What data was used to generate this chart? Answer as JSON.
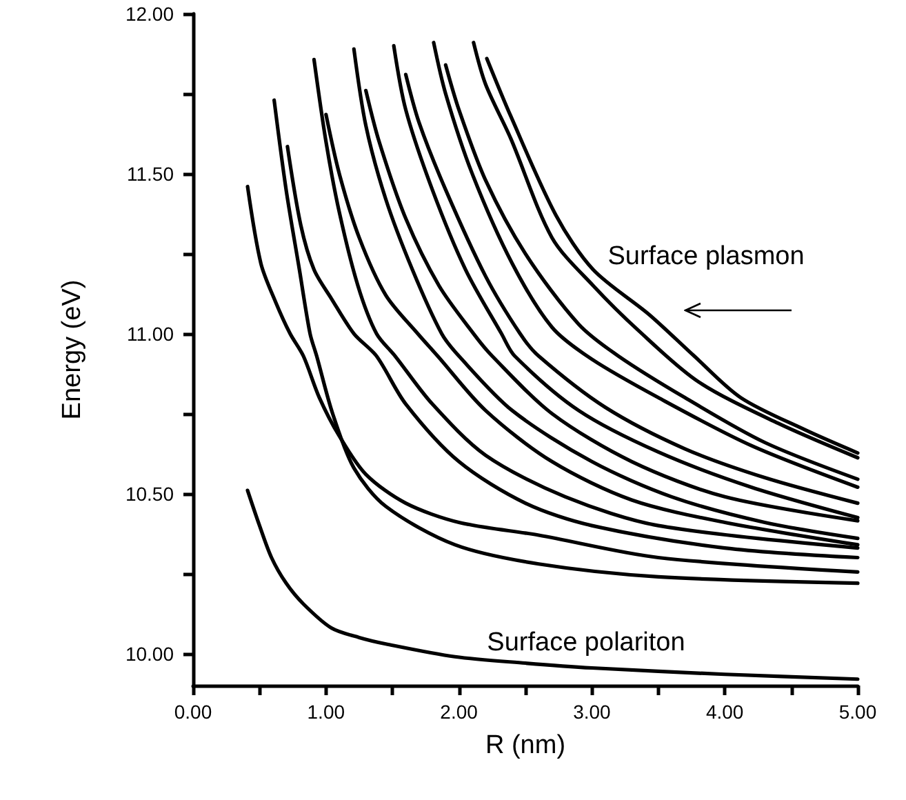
{
  "chart_data": {
    "type": "line",
    "xlabel": "R (nm)",
    "ylabel": "Energy (eV)",
    "xlim": [
      0,
      5
    ],
    "ylim": [
      9.9,
      12
    ],
    "xticks": [
      {
        "value": 0,
        "label": "0.00"
      },
      {
        "value": 0.5,
        "label": null
      },
      {
        "value": 1,
        "label": "1.00"
      },
      {
        "value": 1.5,
        "label": null
      },
      {
        "value": 2,
        "label": "2.00"
      },
      {
        "value": 2.5,
        "label": null
      },
      {
        "value": 3,
        "label": "3.00"
      },
      {
        "value": 3.5,
        "label": null
      },
      {
        "value": 4,
        "label": "4.00"
      },
      {
        "value": 4.5,
        "label": null
      },
      {
        "value": 5,
        "label": "5.00"
      }
    ],
    "yticks": [
      {
        "value": 10,
        "label": "10.00"
      },
      {
        "value": 10.25,
        "label": null
      },
      {
        "value": 10.5,
        "label": "10.50"
      },
      {
        "value": 10.75,
        "label": null
      },
      {
        "value": 11,
        "label": "11.00"
      },
      {
        "value": 11.25,
        "label": null
      },
      {
        "value": 11.5,
        "label": "11.50"
      },
      {
        "value": 11.75,
        "label": null
      },
      {
        "value": 12,
        "label": "12.00"
      }
    ],
    "series": [
      {
        "color": "#000000",
        "x": [
          0.41,
          0.5,
          0.59,
          0.7,
          0.83,
          1.04,
          1.25,
          1.45,
          1.97,
          2.5,
          3,
          4,
          5
        ],
        "values": [
          10.51,
          10.4,
          10.3,
          10.22,
          10.155,
          10.08,
          10.05,
          10.03,
          9.99,
          9.97,
          9.955,
          9.935,
          9.92
        ]
      },
      {
        "color": "#000000",
        "x": [
          0.41,
          0.51,
          0.62,
          0.73,
          0.83,
          0.95,
          1.1,
          1.3,
          1.6,
          2,
          2.6,
          3.5,
          5
        ],
        "values": [
          11.46,
          11.22,
          11.1,
          11,
          10.93,
          10.8,
          10.68,
          10.56,
          10.47,
          10.41,
          10.37,
          10.3,
          10.255
        ]
      },
      {
        "color": "#000000",
        "x": [
          0.61,
          0.7,
          0.8,
          0.88,
          0.93,
          1.05,
          1.21,
          1.45,
          1.97,
          2.6,
          3.5,
          5
        ],
        "values": [
          11.73,
          11.45,
          11.2,
          11,
          10.93,
          10.75,
          10.58,
          10.46,
          10.34,
          10.28,
          10.24,
          10.22
        ]
      },
      {
        "color": "#000000",
        "x": [
          0.71,
          0.81,
          0.91,
          1.04,
          1.21,
          1.38,
          1.6,
          2,
          2.5,
          3,
          4,
          5
        ],
        "values": [
          11.585,
          11.34,
          11.2,
          11.11,
          11,
          10.93,
          10.78,
          10.6,
          10.47,
          10.4,
          10.33,
          10.3
        ]
      },
      {
        "color": "#000000",
        "x": [
          0.91,
          1,
          1.1,
          1.24,
          1.38,
          1.52,
          1.8,
          2.2,
          2.8,
          3.5,
          5
        ],
        "values": [
          11.857,
          11.6,
          11.38,
          11.15,
          11,
          10.93,
          10.78,
          10.62,
          10.49,
          10.4,
          10.33
        ]
      },
      {
        "color": "#000000",
        "x": [
          1,
          1.1,
          1.25,
          1.45,
          1.69,
          1.84,
          2.2,
          2.7,
          3.3,
          4,
          5
        ],
        "values": [
          11.685,
          11.5,
          11.3,
          11.12,
          11,
          10.93,
          10.76,
          10.6,
          10.48,
          10.41,
          10.34
        ]
      },
      {
        "color": "#000000",
        "x": [
          1.21,
          1.3,
          1.45,
          1.65,
          1.87,
          2,
          2.4,
          3,
          3.6,
          4.3,
          5
        ],
        "values": [
          11.89,
          11.65,
          11.42,
          11.2,
          11,
          10.93,
          10.76,
          10.6,
          10.49,
          10.41,
          10.36
        ]
      },
      {
        "color": "#000000",
        "x": [
          1.3,
          1.4,
          1.6,
          1.85,
          2.11,
          2.25,
          2.7,
          3.3,
          4,
          5
        ],
        "values": [
          11.76,
          11.6,
          11.36,
          11.15,
          11,
          10.93,
          10.75,
          10.6,
          10.49,
          10.415
        ]
      },
      {
        "color": "#000000",
        "x": [
          1.51,
          1.6,
          1.8,
          2.05,
          2.32,
          2.42,
          2.9,
          3.5,
          4.2,
          5
        ],
        "values": [
          11.9,
          11.7,
          11.45,
          11.2,
          11,
          10.93,
          10.76,
          10.63,
          10.52,
          10.425
        ]
      },
      {
        "color": "#000000",
        "x": [
          1.6,
          1.7,
          1.9,
          2.2,
          2.46,
          2.6,
          3.1,
          3.7,
          4.3,
          5
        ],
        "values": [
          11.81,
          11.66,
          11.45,
          11.18,
          11,
          10.93,
          10.77,
          10.64,
          10.55,
          10.47
        ]
      },
      {
        "color": "#000000",
        "x": [
          1.81,
          1.9,
          2.1,
          2.4,
          2.7,
          3,
          3.5,
          4.2,
          5
        ],
        "values": [
          11.91,
          11.75,
          11.5,
          11.22,
          11.02,
          10.92,
          10.8,
          10.65,
          10.52
        ]
      },
      {
        "color": "#000000",
        "x": [
          1.9,
          2,
          2.2,
          2.5,
          2.9,
          3.2,
          3.7,
          4.3,
          5
        ],
        "values": [
          11.84,
          11.7,
          11.48,
          11.25,
          11.03,
          10.93,
          10.8,
          10.66,
          10.545
        ]
      },
      {
        "color": "#000000",
        "x": [
          2.11,
          2.2,
          2.39,
          2.7,
          3.01,
          3.35,
          3.8,
          4.4,
          5
        ],
        "values": [
          11.91,
          11.78,
          11.61,
          11.3,
          11.15,
          11.01,
          10.85,
          10.72,
          10.612
        ]
      },
      {
        "color": "#000000",
        "x": [
          2.21,
          2.39,
          2.73,
          3.01,
          3.43,
          3.77,
          4.12,
          4.6,
          5
        ],
        "values": [
          11.86,
          11.68,
          11.37,
          11.2,
          11.06,
          10.93,
          10.8,
          10.7,
          10.627
        ]
      }
    ],
    "annotations": [
      "Surface plasmon",
      "Surface polariton"
    ]
  }
}
